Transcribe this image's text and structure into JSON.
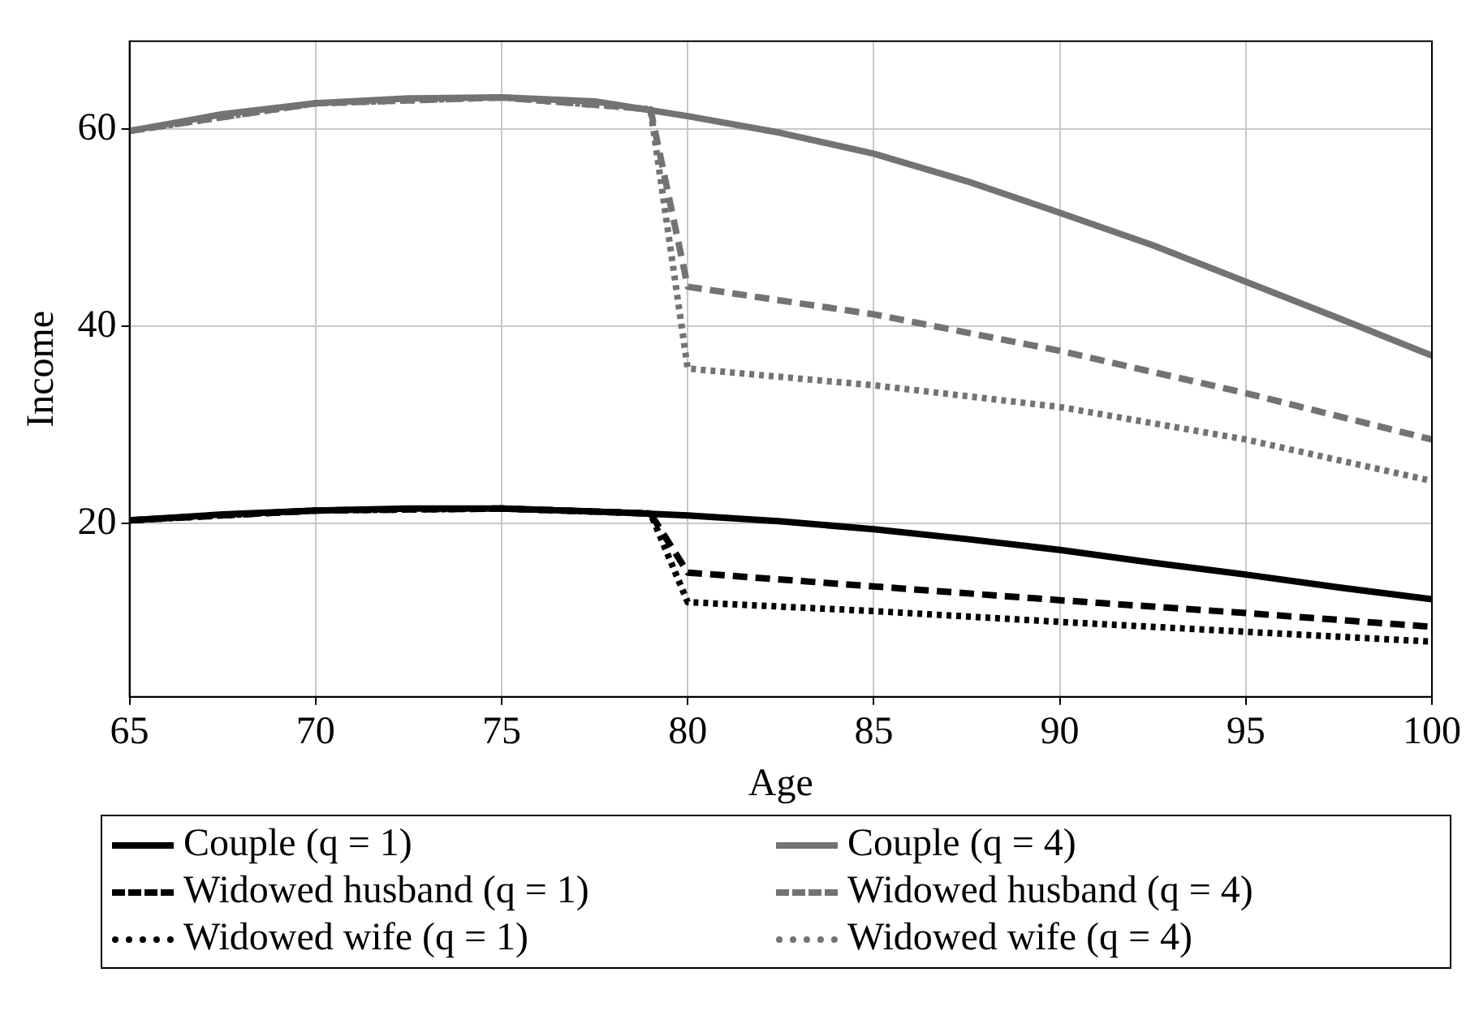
{
  "chart_data": {
    "type": "line",
    "xlabel": "Age",
    "ylabel": "Income",
    "xlim": [
      65,
      100
    ],
    "xticks": [
      65,
      70,
      75,
      80,
      85,
      90,
      95,
      100
    ],
    "ylim": [
      2.4,
      68.9
    ],
    "yticks": [
      20,
      40,
      60
    ],
    "grid": true,
    "legend": "bottom",
    "marker": "none",
    "series": [
      {
        "name": "Couple (q = 1)",
        "color": "#000000",
        "line_style": "solid",
        "x": [
          65,
          67.5,
          70,
          72.5,
          75,
          77.5,
          80,
          82.5,
          85,
          87.5,
          90,
          92.5,
          95,
          97.5,
          100
        ],
        "values": [
          20.3,
          20.9,
          21.3,
          21.5,
          21.5,
          21.2,
          20.8,
          20.2,
          19.4,
          18.4,
          17.3,
          16.0,
          14.8,
          13.5,
          12.3
        ]
      },
      {
        "name": "Couple (q = 4)",
        "color": "#737373",
        "line_style": "solid",
        "x": [
          65,
          67.5,
          70,
          72.5,
          75,
          77.5,
          80,
          82.5,
          85,
          87.5,
          90,
          92.5,
          95,
          97.5,
          100
        ],
        "values": [
          59.8,
          61.5,
          62.6,
          63.1,
          63.2,
          62.8,
          61.3,
          59.6,
          57.5,
          54.7,
          51.5,
          48.2,
          44.5,
          40.8,
          37.0
        ]
      },
      {
        "name": "Widowed husband (q = 1)",
        "color": "#000000",
        "line_style": "dashed",
        "x": [
          65,
          70,
          75,
          79,
          80,
          85,
          90,
          95,
          100
        ],
        "values": [
          20.3,
          21.3,
          21.5,
          21.0,
          15.0,
          13.6,
          12.2,
          10.9,
          9.5
        ]
      },
      {
        "name": "Widowed husband (q = 4)",
        "color": "#737373",
        "line_style": "dashed",
        "x": [
          65,
          70,
          75,
          79,
          80,
          85,
          90,
          95,
          100
        ],
        "values": [
          59.8,
          62.6,
          63.2,
          62.0,
          44.0,
          41.2,
          37.5,
          33.2,
          28.5
        ]
      },
      {
        "name": "Widowed wife (q = 1)",
        "color": "#000000",
        "line_style": "dotted",
        "x": [
          65,
          70,
          75,
          79,
          80,
          85,
          90,
          95,
          100
        ],
        "values": [
          20.3,
          21.3,
          21.5,
          21.0,
          12.0,
          11.1,
          10.0,
          9.0,
          8.0
        ]
      },
      {
        "name": "Widowed wife (q = 4)",
        "color": "#737373",
        "line_style": "dotted",
        "x": [
          65,
          70,
          75,
          79,
          80,
          85,
          90,
          95,
          100
        ],
        "values": [
          59.8,
          62.6,
          63.2,
          62.0,
          35.7,
          34.0,
          31.8,
          28.5,
          24.3
        ]
      }
    ]
  }
}
